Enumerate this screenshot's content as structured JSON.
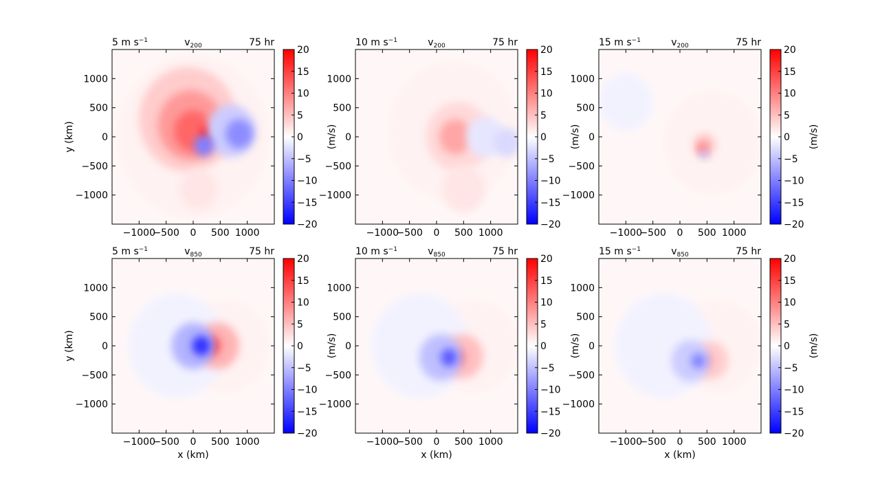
{
  "colorbar": {
    "label": "(m/s)",
    "ticks": [
      20,
      15,
      10,
      5,
      0,
      -5,
      -10,
      -15,
      -20
    ],
    "tick_labels": [
      "20",
      "15",
      "10",
      "5",
      "0",
      "−5",
      "−10",
      "−15",
      "−20"
    ],
    "range": [
      -20,
      20
    ],
    "colormap": [
      "#0000ff",
      "#ffffff",
      "#ff0000"
    ]
  },
  "axes_labels": {
    "x": "x (km)",
    "y": "y (km)"
  },
  "chart_data": [
    {
      "type": "heatmap",
      "shear_label": "5 m s",
      "shear_exp": "−1",
      "var": "v",
      "level": "200",
      "time": "75 hr",
      "xticks": [
        -1000,
        -500,
        0,
        500,
        1000
      ],
      "xtick_labels": [
        "−1000",
        "−500",
        "0",
        "500",
        "1000"
      ],
      "yticks": [
        1000,
        500,
        0,
        -500,
        -1000
      ],
      "ytick_labels": [
        "1000",
        "500",
        "0",
        "−500",
        "−1000"
      ],
      "xlim": [
        -1500,
        1500
      ],
      "ylim": [
        -1500,
        1500
      ],
      "features": [
        {
          "x": 0,
          "y": 0,
          "r": 1400,
          "value": 1
        },
        {
          "x": -100,
          "y": 300,
          "r": 900,
          "value": 4
        },
        {
          "x": -50,
          "y": 200,
          "r": 600,
          "value": 8
        },
        {
          "x": 0,
          "y": 100,
          "r": 350,
          "value": 12
        },
        {
          "x": 280,
          "y": 50,
          "r": 130,
          "value": 20
        },
        {
          "x": 700,
          "y": 100,
          "r": 450,
          "value": -4
        },
        {
          "x": 850,
          "y": 50,
          "r": 250,
          "value": -9
        },
        {
          "x": 200,
          "y": -150,
          "r": 180,
          "value": -10
        },
        {
          "x": 100,
          "y": -900,
          "r": 350,
          "value": 2
        }
      ]
    },
    {
      "type": "heatmap",
      "shear_label": "10 m s",
      "shear_exp": "−1",
      "var": "v",
      "level": "200",
      "time": "75 hr",
      "xticks": [
        -1000,
        -500,
        0,
        500,
        1000
      ],
      "xtick_labels": [
        "−1000",
        "−500",
        "0",
        "500",
        "1000"
      ],
      "yticks": [
        1000,
        500,
        0,
        -500,
        -1000
      ],
      "ytick_labels": [
        "1000",
        "500",
        "0",
        "−500",
        "−1000"
      ],
      "xlim": [
        -1500,
        1500
      ],
      "ylim": [
        -1500,
        1500
      ],
      "features": [
        {
          "x": 300,
          "y": 100,
          "r": 1200,
          "value": 1
        },
        {
          "x": 400,
          "y": 0,
          "r": 600,
          "value": 3
        },
        {
          "x": 350,
          "y": 0,
          "r": 300,
          "value": 7
        },
        {
          "x": 900,
          "y": 0,
          "r": 350,
          "value": -2
        },
        {
          "x": 1300,
          "y": -100,
          "r": 250,
          "value": -3
        },
        {
          "x": 500,
          "y": -900,
          "r": 400,
          "value": 2
        }
      ]
    },
    {
      "type": "heatmap",
      "shear_label": "15 m s",
      "shear_exp": "−1",
      "var": "v",
      "level": "200",
      "time": "75 hr",
      "xticks": [
        -1000,
        -500,
        0,
        500,
        1000
      ],
      "xtick_labels": [
        "−1000",
        "−500",
        "0",
        "500",
        "1000"
      ],
      "yticks": [
        1000,
        500,
        0,
        -500,
        -1000
      ],
      "ytick_labels": [
        "1000",
        "500",
        "0",
        "−500",
        "−1000"
      ],
      "xlim": [
        -1500,
        1500
      ],
      "ylim": [
        -1500,
        1500
      ],
      "features": [
        {
          "x": 600,
          "y": -100,
          "r": 900,
          "value": 1
        },
        {
          "x": 450,
          "y": -150,
          "r": 200,
          "value": 5
        },
        {
          "x": 420,
          "y": -200,
          "r": 80,
          "value": 12
        },
        {
          "x": 450,
          "y": -300,
          "r": 80,
          "value": -5
        },
        {
          "x": -1000,
          "y": 600,
          "r": 500,
          "value": -1
        }
      ]
    },
    {
      "type": "heatmap",
      "shear_label": "5 m s",
      "shear_exp": "−1",
      "var": "v",
      "level": "850",
      "time": "75 hr",
      "xticks": [
        -1000,
        -500,
        0,
        500,
        1000
      ],
      "xtick_labels": [
        "−1000",
        "−500",
        "0",
        "500",
        "1000"
      ],
      "yticks": [
        1000,
        500,
        0,
        -500,
        -1000
      ],
      "ytick_labels": [
        "1000",
        "500",
        "0",
        "−500",
        "−1000"
      ],
      "xlim": [
        -1500,
        1500
      ],
      "ylim": [
        -1500,
        1500
      ],
      "features": [
        {
          "x": 600,
          "y": 0,
          "r": 800,
          "value": 1
        },
        {
          "x": -300,
          "y": 0,
          "r": 900,
          "value": -1
        },
        {
          "x": 450,
          "y": 0,
          "r": 400,
          "value": 6
        },
        {
          "x": 320,
          "y": 0,
          "r": 170,
          "value": 16
        },
        {
          "x": 0,
          "y": 0,
          "r": 400,
          "value": -6
        },
        {
          "x": 150,
          "y": 0,
          "r": 170,
          "value": -16
        }
      ]
    },
    {
      "type": "heatmap",
      "shear_label": "10 m s",
      "shear_exp": "−1",
      "var": "v",
      "level": "850",
      "time": "75 hr",
      "xticks": [
        -1000,
        -500,
        0,
        500,
        1000
      ],
      "xtick_labels": [
        "−1000",
        "−500",
        "0",
        "500",
        "1000"
      ],
      "yticks": [
        1000,
        500,
        0,
        -500,
        -1000
      ],
      "ytick_labels": [
        "1000",
        "500",
        "0",
        "−500",
        "−1000"
      ],
      "xlim": [
        -1500,
        1500
      ],
      "ylim": [
        -1500,
        1500
      ],
      "features": [
        {
          "x": 700,
          "y": 0,
          "r": 800,
          "value": 1
        },
        {
          "x": -300,
          "y": 0,
          "r": 900,
          "value": -1
        },
        {
          "x": 480,
          "y": -180,
          "r": 380,
          "value": 5
        },
        {
          "x": 360,
          "y": -200,
          "r": 150,
          "value": 13
        },
        {
          "x": 80,
          "y": -200,
          "r": 400,
          "value": -5
        },
        {
          "x": 230,
          "y": -200,
          "r": 150,
          "value": -13
        }
      ]
    },
    {
      "type": "heatmap",
      "shear_label": "15 m s",
      "shear_exp": "−1",
      "var": "v",
      "level": "850",
      "time": "75 hr",
      "xticks": [
        -1000,
        -500,
        0,
        500,
        1000
      ],
      "xtick_labels": [
        "−1000",
        "−500",
        "0",
        "500",
        "1000"
      ],
      "yticks": [
        1000,
        500,
        0,
        -500,
        -1000
      ],
      "ytick_labels": [
        "1000",
        "500",
        "0",
        "−500",
        "−1000"
      ],
      "xlim": [
        -1500,
        1500
      ],
      "ylim": [
        -1500,
        1500
      ],
      "features": [
        {
          "x": 700,
          "y": 0,
          "r": 800,
          "value": 1
        },
        {
          "x": -300,
          "y": 0,
          "r": 900,
          "value": -1
        },
        {
          "x": 560,
          "y": -250,
          "r": 330,
          "value": 4
        },
        {
          "x": 450,
          "y": -260,
          "r": 130,
          "value": 10
        },
        {
          "x": 200,
          "y": -260,
          "r": 360,
          "value": -4
        },
        {
          "x": 340,
          "y": -260,
          "r": 130,
          "value": -10
        }
      ]
    }
  ]
}
